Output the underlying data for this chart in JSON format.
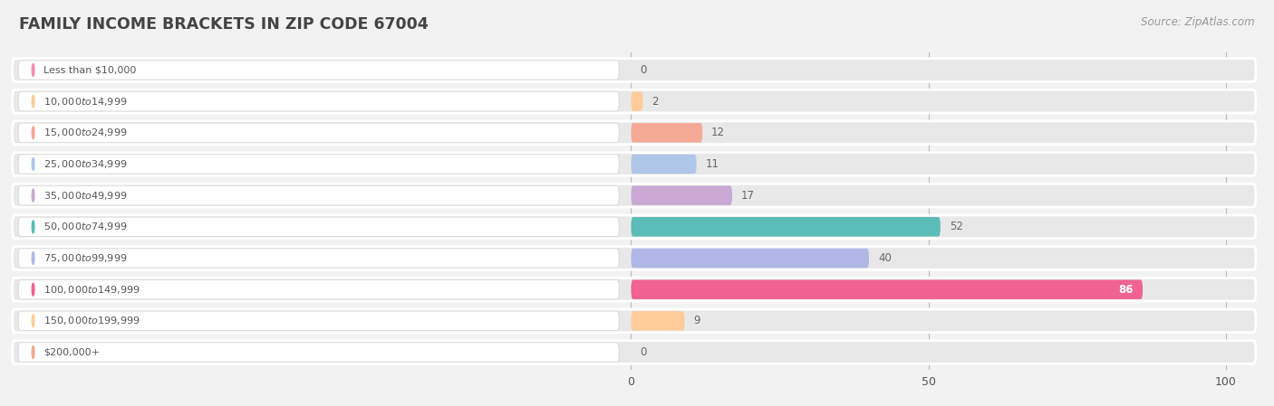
{
  "title": "FAMILY INCOME BRACKETS IN ZIP CODE 67004",
  "source": "Source: ZipAtlas.com",
  "categories": [
    "Less than $10,000",
    "$10,000 to $14,999",
    "$15,000 to $24,999",
    "$25,000 to $34,999",
    "$35,000 to $49,999",
    "$50,000 to $74,999",
    "$75,000 to $99,999",
    "$100,000 to $149,999",
    "$150,000 to $199,999",
    "$200,000+"
  ],
  "values": [
    0,
    2,
    12,
    11,
    17,
    52,
    40,
    86,
    9,
    0
  ],
  "bar_colors": [
    "#f48fb1",
    "#ffcc99",
    "#f4a896",
    "#aec6e8",
    "#c9a8d4",
    "#5bbcb8",
    "#b0b8e8",
    "#f06292",
    "#ffcc99",
    "#f4a896"
  ],
  "background_color": "#f2f2f2",
  "row_bg_color": "#e8e8e8",
  "label_pill_color": "#ffffff",
  "xlim": [
    0,
    100
  ],
  "label_color": "#555555",
  "title_color": "#444444",
  "source_color": "#999999",
  "value_label_inside_color": "#ffffff",
  "value_label_outside_color": "#666666"
}
